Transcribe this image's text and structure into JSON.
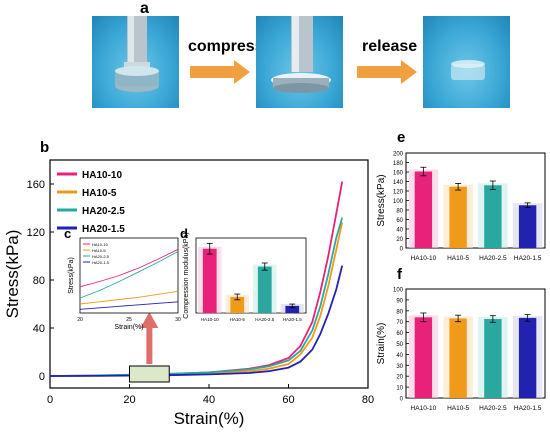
{
  "panel_labels": {
    "a": "a",
    "b": "b",
    "c": "c",
    "d": "d",
    "e": "e",
    "f": "f"
  },
  "process": {
    "compress": "compress",
    "release": "release"
  },
  "chart_data": [
    {
      "id": "b",
      "type": "line",
      "xlabel": "Strain(%)",
      "ylabel": "Stress(kPa)",
      "xlim": [
        0,
        80
      ],
      "ylim": [
        -10,
        180
      ],
      "xticks": [
        0,
        20,
        40,
        60,
        80
      ],
      "yticks": [
        0,
        40,
        80,
        120,
        160
      ],
      "legend_position": "top-left",
      "series": [
        {
          "name": "HA10-10",
          "color": "#e8217a",
          "x": [
            0,
            10,
            20,
            30,
            40,
            50,
            55,
            60,
            63,
            66,
            68,
            70,
            72,
            73.5
          ],
          "y": [
            0,
            0.3,
            0.8,
            1.5,
            3,
            6,
            9,
            15,
            25,
            45,
            70,
            100,
            135,
            162
          ]
        },
        {
          "name": "HA10-5",
          "color": "#f09a1a",
          "x": [
            0,
            10,
            20,
            30,
            40,
            50,
            55,
            60,
            63,
            66,
            68,
            70,
            72,
            73.5
          ],
          "y": [
            0,
            0.2,
            0.5,
            1,
            2,
            4,
            6,
            10,
            18,
            32,
            50,
            75,
            105,
            128
          ]
        },
        {
          "name": "HA20-2.5",
          "color": "#2aa8a0",
          "x": [
            0,
            10,
            20,
            30,
            40,
            50,
            55,
            60,
            63,
            66,
            68,
            70,
            72,
            73.5
          ],
          "y": [
            0,
            0.4,
            1,
            1.8,
            3,
            5.5,
            8,
            13,
            21,
            38,
            58,
            85,
            115,
            132
          ]
        },
        {
          "name": "HA20-1.5",
          "color": "#2222b0",
          "x": [
            0,
            10,
            20,
            30,
            40,
            50,
            55,
            60,
            63,
            66,
            68,
            70,
            72,
            73.5
          ],
          "y": [
            0,
            0.1,
            0.3,
            0.7,
            1.3,
            2.5,
            4,
            7,
            12,
            22,
            35,
            52,
            72,
            92
          ]
        }
      ]
    },
    {
      "id": "c",
      "type": "line",
      "xlabel": "Strain(%)",
      "ylabel": "Stress(kPa)",
      "xlim": [
        20,
        30
      ],
      "xticks": [
        20,
        25,
        30
      ],
      "legend_position": "top-left",
      "series": [
        {
          "name": "HA10-10",
          "color": "#e8217a",
          "x": [
            20,
            22,
            24,
            26,
            28,
            30
          ],
          "y": [
            0.35,
            0.42,
            0.5,
            0.6,
            0.72,
            0.85
          ]
        },
        {
          "name": "HA10-5",
          "color": "#f09a1a",
          "x": [
            20,
            22,
            24,
            26,
            28,
            30
          ],
          "y": [
            0.12,
            0.15,
            0.18,
            0.21,
            0.25,
            0.29
          ]
        },
        {
          "name": "HA20-2.5",
          "color": "#2aa8a0",
          "x": [
            20,
            22,
            24,
            26,
            28,
            30
          ],
          "y": [
            0.2,
            0.3,
            0.42,
            0.55,
            0.68,
            0.82
          ]
        },
        {
          "name": "HA20-1.5",
          "color": "#2222b0",
          "x": [
            20,
            22,
            24,
            26,
            28,
            30
          ],
          "y": [
            0.05,
            0.07,
            0.09,
            0.11,
            0.13,
            0.15
          ]
        }
      ]
    },
    {
      "id": "d",
      "type": "bar",
      "ylabel": "Compression modulus(kPa)",
      "categories": [
        "HA10-10",
        "HA10-5",
        "HA20-2.5",
        "HA20-1.5"
      ],
      "values": [
        1.8,
        0.45,
        1.3,
        0.2
      ],
      "errors": [
        0.15,
        0.08,
        0.1,
        0.05
      ],
      "ylim": [
        0,
        2.1
      ],
      "colors": [
        "#e8217a",
        "#f09a1a",
        "#2aa8a0",
        "#2222b0"
      ],
      "bg_colors": [
        "#f8c8dc",
        "#fde3c0",
        "#c6ece8",
        "#d6d6f0"
      ]
    },
    {
      "id": "e",
      "type": "bar",
      "ylabel": "Stress(kPa)",
      "categories": [
        "HA10-10",
        "HA10-5",
        "HA20-2.5",
        "HA20-1.5"
      ],
      "values": [
        161,
        129,
        132,
        90
      ],
      "errors": [
        9,
        7,
        9,
        5
      ],
      "ylim": [
        0,
        200
      ],
      "yticks": [
        0,
        20,
        40,
        60,
        80,
        100,
        120,
        140,
        160,
        180,
        200
      ],
      "colors": [
        "#e8217a",
        "#f09a1a",
        "#2aa8a0",
        "#2222b0"
      ],
      "bg_colors": [
        "#f8c8dc",
        "#fde3c0",
        "#c6ece8",
        "#d6d6f0"
      ]
    },
    {
      "id": "f",
      "type": "bar",
      "ylabel": "Strain(%)",
      "categories": [
        "HA10-10",
        "HA10-5",
        "HA20-2.5",
        "HA20-1.5"
      ],
      "values": [
        74,
        73,
        72.5,
        73.5
      ],
      "errors": [
        4,
        3,
        3,
        3
      ],
      "ylim": [
        0,
        100
      ],
      "yticks": [
        0,
        10,
        20,
        30,
        40,
        50,
        60,
        70,
        80,
        90,
        100
      ],
      "colors": [
        "#e8217a",
        "#f09a1a",
        "#2aa8a0",
        "#2222b0"
      ],
      "bg_colors": [
        "#f8c8dc",
        "#fde3c0",
        "#c6ece8",
        "#d6d6f0"
      ]
    }
  ]
}
